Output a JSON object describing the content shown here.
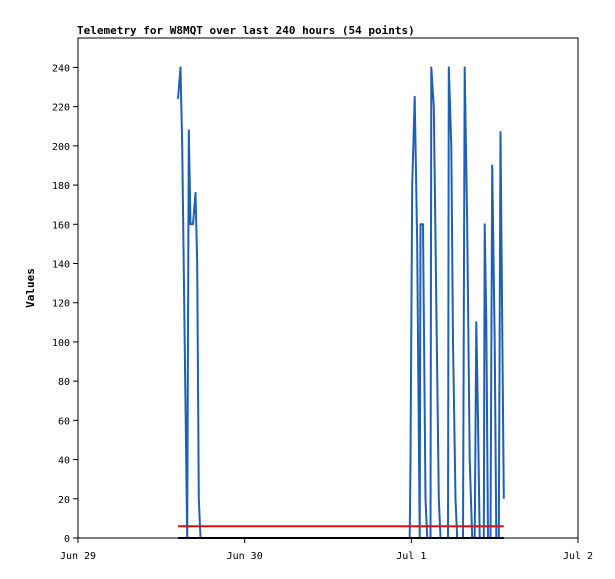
{
  "chart_data": {
    "type": "line",
    "title": "Telemetry for W8MQT over last 240 hours (54 points)",
    "ylabel": "Values",
    "xlabel": "",
    "ylim": [
      0,
      255
    ],
    "xlim": [
      0,
      3
    ],
    "y_ticks": [
      0,
      20,
      40,
      60,
      80,
      100,
      120,
      140,
      160,
      180,
      200,
      220,
      240
    ],
    "x_ticks": [
      {
        "label": "Jun 29",
        "value": 0
      },
      {
        "label": "Jun 30",
        "value": 1
      },
      {
        "label": "Jul 1",
        "value": 2
      },
      {
        "label": "Jul 2",
        "value": 3
      }
    ],
    "grid": false,
    "colors": {
      "values": "#1f5fb4",
      "threshold": "#e01010",
      "axis": "#000000"
    },
    "series": [
      {
        "key": "values",
        "values": [
          [
            0.6,
            224
          ],
          [
            0.615,
            240
          ],
          [
            0.625,
            200
          ],
          [
            0.64,
            100
          ],
          [
            0.655,
            0
          ],
          [
            0.665,
            208
          ],
          [
            0.675,
            160
          ],
          [
            0.69,
            160
          ],
          [
            0.705,
            176
          ],
          [
            0.715,
            140
          ],
          [
            0.725,
            20
          ],
          [
            0.735,
            0
          ],
          [
            1.99,
            0
          ],
          [
            1.995,
            40
          ],
          [
            2.005,
            180
          ],
          [
            2.02,
            225
          ],
          [
            2.035,
            150
          ],
          [
            2.05,
            0
          ],
          [
            2.055,
            160
          ],
          [
            2.07,
            160
          ],
          [
            2.085,
            20
          ],
          [
            2.095,
            0
          ],
          [
            2.115,
            0
          ],
          [
            2.12,
            240
          ],
          [
            2.135,
            220
          ],
          [
            2.15,
            120
          ],
          [
            2.165,
            20
          ],
          [
            2.175,
            0
          ],
          [
            2.22,
            0
          ],
          [
            2.225,
            240
          ],
          [
            2.24,
            200
          ],
          [
            2.25,
            100
          ],
          [
            2.265,
            20
          ],
          [
            2.275,
            0
          ],
          [
            2.31,
            0
          ],
          [
            2.32,
            240
          ],
          [
            2.335,
            160
          ],
          [
            2.35,
            40
          ],
          [
            2.365,
            0
          ],
          [
            2.38,
            0
          ],
          [
            2.39,
            110
          ],
          [
            2.4,
            60
          ],
          [
            2.41,
            0
          ],
          [
            2.435,
            0
          ],
          [
            2.44,
            160
          ],
          [
            2.45,
            110
          ],
          [
            2.46,
            0
          ],
          [
            2.475,
            0
          ],
          [
            2.485,
            190
          ],
          [
            2.5,
            100
          ],
          [
            2.51,
            0
          ],
          [
            2.525,
            0
          ],
          [
            2.535,
            207
          ],
          [
            2.555,
            20
          ]
        ]
      },
      {
        "key": "threshold",
        "values": [
          [
            0.6,
            6
          ],
          [
            2.555,
            6
          ]
        ]
      }
    ]
  }
}
